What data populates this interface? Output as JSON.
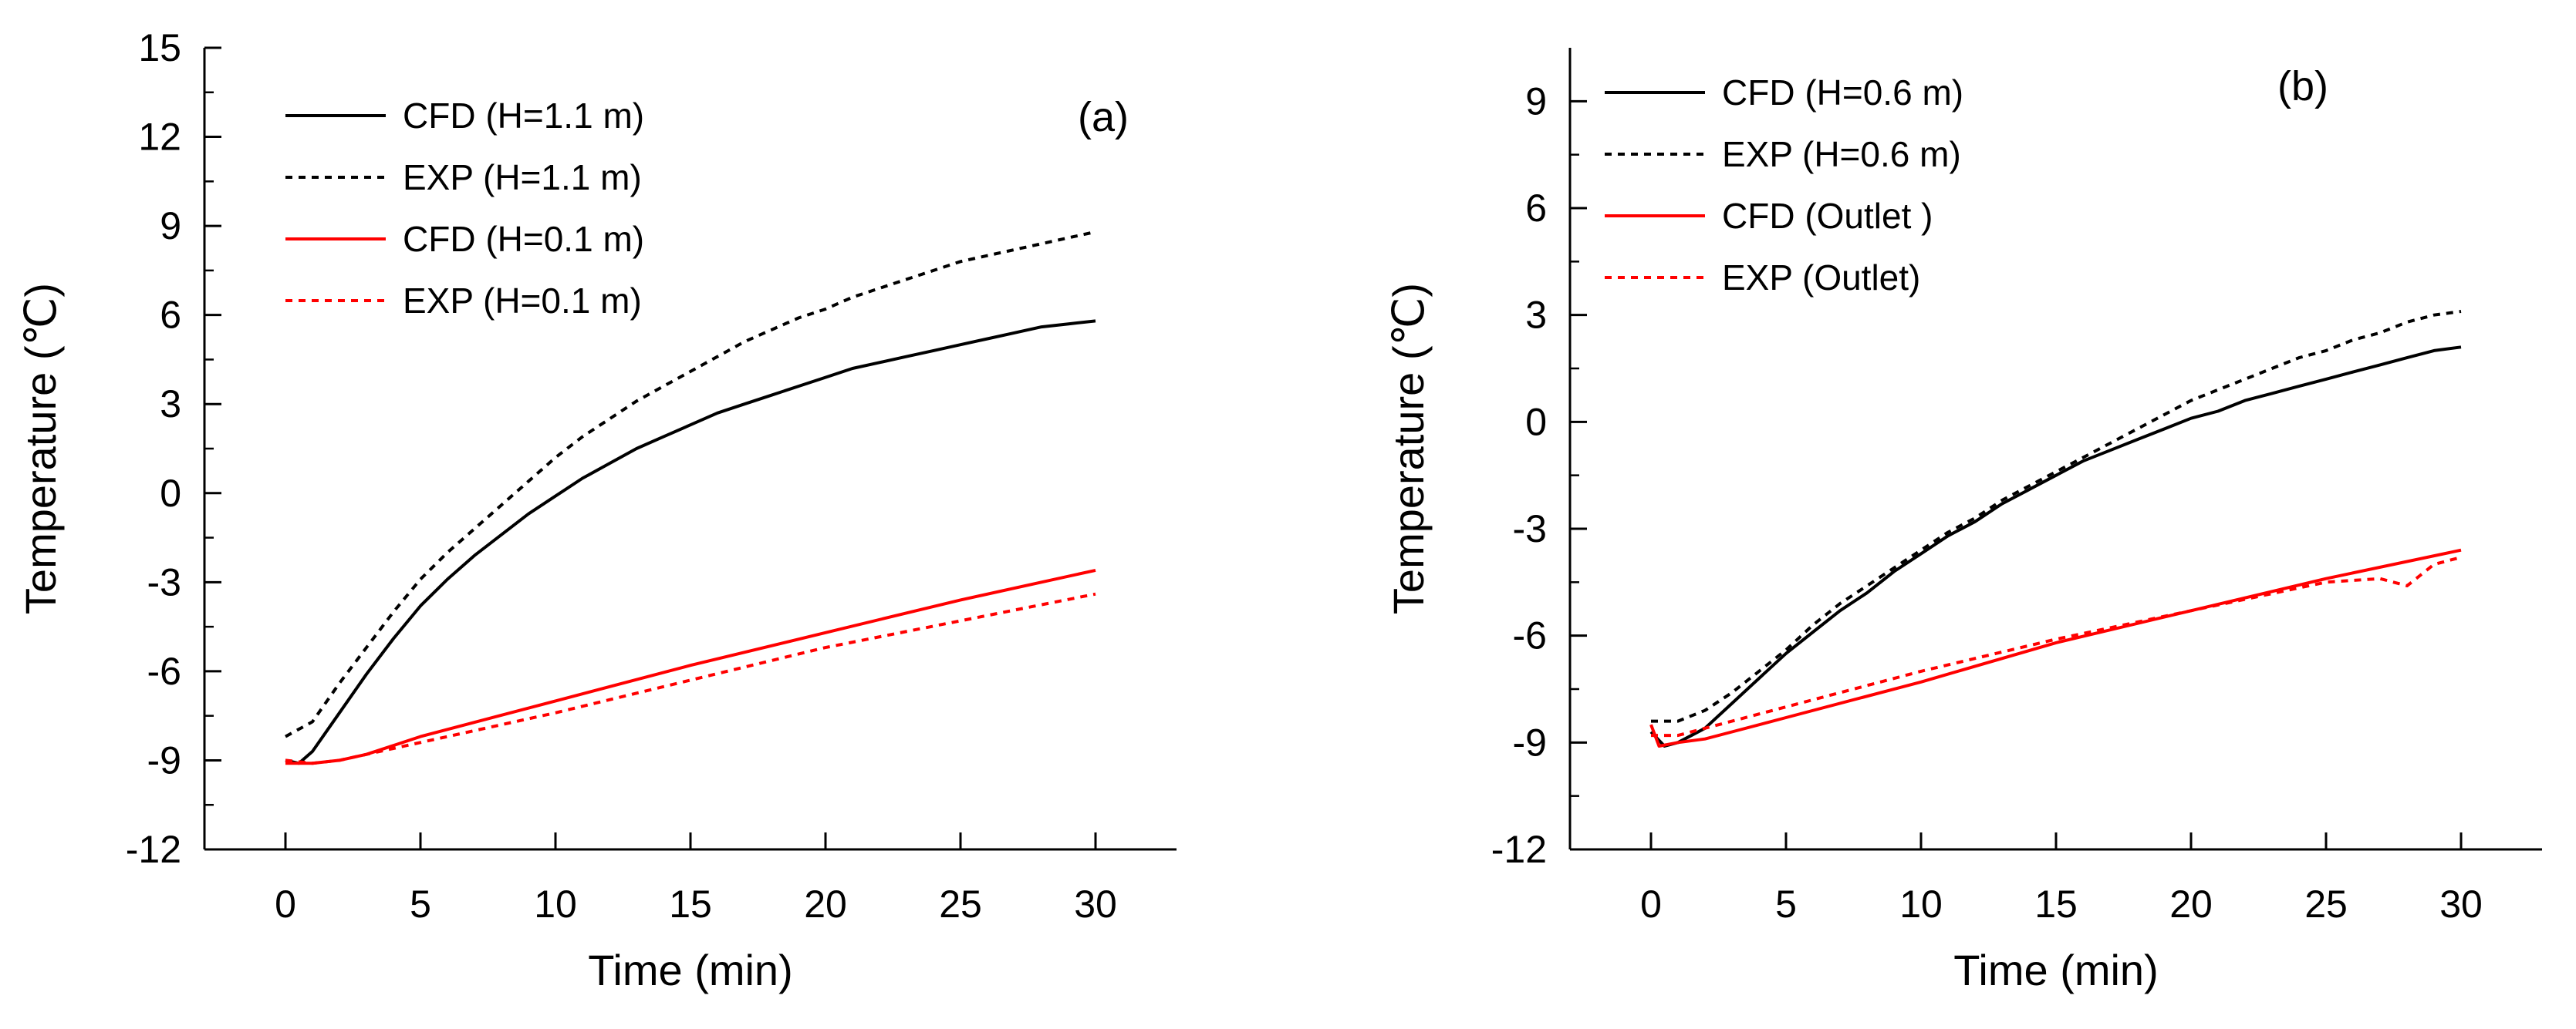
{
  "chart_data": [
    {
      "type": "line",
      "panel_label": "(a)",
      "xlabel": "Time (min)",
      "ylabel": "Temperature (℃)",
      "xlim": [
        -3,
        33
      ],
      "ylim": [
        -12,
        15
      ],
      "xticks": [
        0,
        5,
        10,
        15,
        20,
        25,
        30
      ],
      "yticks": [
        -12,
        -9,
        -6,
        -3,
        0,
        3,
        6,
        9,
        12,
        15
      ],
      "grid": false,
      "legend_position": "top-left",
      "series": [
        {
          "name": "CFD (H=1.1 m)",
          "color": "#000000",
          "dash": "solid",
          "x": [
            0,
            0.5,
            1,
            2,
            3,
            4,
            5,
            6,
            7,
            8,
            9,
            10,
            11,
            12,
            13,
            14,
            15,
            16,
            17,
            18,
            19,
            20,
            21,
            22,
            23,
            24,
            25,
            26,
            27,
            28,
            29,
            30
          ],
          "y": [
            -9.0,
            -9.1,
            -8.7,
            -7.4,
            -6.1,
            -4.9,
            -3.8,
            -2.9,
            -2.1,
            -1.4,
            -0.7,
            -0.1,
            0.5,
            1.0,
            1.5,
            1.9,
            2.3,
            2.7,
            3.0,
            3.3,
            3.6,
            3.9,
            4.2,
            4.4,
            4.6,
            4.8,
            5.0,
            5.2,
            5.4,
            5.6,
            5.7,
            5.8
          ]
        },
        {
          "name": "EXP (H=1.1 m)",
          "color": "#000000",
          "dash": "dotted",
          "x": [
            0,
            1,
            2,
            3,
            4,
            5,
            6,
            7,
            8,
            9,
            10,
            11,
            12,
            13,
            14,
            15,
            16,
            17,
            18,
            19,
            20,
            21,
            22,
            23,
            24,
            25,
            26,
            27,
            28,
            29,
            30
          ],
          "y": [
            -8.2,
            -7.7,
            -6.4,
            -5.2,
            -4.0,
            -2.9,
            -2.0,
            -1.2,
            -0.4,
            0.4,
            1.2,
            1.9,
            2.5,
            3.1,
            3.6,
            4.1,
            4.6,
            5.1,
            5.5,
            5.9,
            6.2,
            6.6,
            6.9,
            7.2,
            7.5,
            7.8,
            8.0,
            8.2,
            8.4,
            8.6,
            8.8
          ]
        },
        {
          "name": "CFD (H=0.1 m)",
          "color": "#ff0000",
          "dash": "solid",
          "x": [
            0,
            1,
            2,
            3,
            5,
            10,
            15,
            20,
            25,
            30
          ],
          "y": [
            -9.1,
            -9.1,
            -9.0,
            -8.8,
            -8.2,
            -7.0,
            -5.8,
            -4.7,
            -3.6,
            -2.6
          ]
        },
        {
          "name": "EXP (H=0.1 m)",
          "color": "#ff0000",
          "dash": "dotted",
          "x": [
            0,
            1,
            2,
            3,
            5,
            10,
            15,
            20,
            25,
            30
          ],
          "y": [
            -9.0,
            -9.1,
            -9.0,
            -8.8,
            -8.4,
            -7.4,
            -6.3,
            -5.2,
            -4.3,
            -3.4
          ]
        }
      ]
    },
    {
      "type": "line",
      "panel_label": "(b)",
      "xlabel": "Time (min)",
      "ylabel": "Temperature (℃)",
      "xlim": [
        -3,
        33
      ],
      "ylim": [
        -12,
        10.5
      ],
      "xticks": [
        0,
        5,
        10,
        15,
        20,
        25,
        30
      ],
      "yticks": [
        -12,
        -9,
        -6,
        -3,
        0,
        3,
        6,
        9
      ],
      "grid": false,
      "legend_position": "top-left",
      "series": [
        {
          "name": "CFD (H=0.6 m)",
          "color": "#000000",
          "dash": "solid",
          "x": [
            0,
            0.5,
            1,
            2,
            3,
            4,
            5,
            6,
            7,
            8,
            9,
            10,
            11,
            12,
            13,
            14,
            15,
            16,
            17,
            18,
            19,
            20,
            21,
            22,
            23,
            24,
            25,
            26,
            27,
            28,
            29,
            30
          ],
          "y": [
            -8.7,
            -9.1,
            -9.0,
            -8.6,
            -7.9,
            -7.2,
            -6.5,
            -5.9,
            -5.3,
            -4.8,
            -4.2,
            -3.7,
            -3.2,
            -2.8,
            -2.3,
            -1.9,
            -1.5,
            -1.1,
            -0.8,
            -0.5,
            -0.2,
            0.1,
            0.3,
            0.6,
            0.8,
            1.0,
            1.2,
            1.4,
            1.6,
            1.8,
            2.0,
            2.1
          ]
        },
        {
          "name": "EXP (H=0.6 m)",
          "color": "#000000",
          "dash": "dotted",
          "x": [
            0,
            1,
            2,
            3,
            4,
            5,
            6,
            7,
            8,
            9,
            10,
            11,
            12,
            13,
            14,
            15,
            16,
            17,
            18,
            19,
            20,
            21,
            22,
            23,
            24,
            25,
            26,
            27,
            28,
            29,
            30
          ],
          "y": [
            -8.4,
            -8.4,
            -8.1,
            -7.6,
            -7.0,
            -6.4,
            -5.7,
            -5.1,
            -4.6,
            -4.1,
            -3.6,
            -3.1,
            -2.7,
            -2.2,
            -1.8,
            -1.4,
            -1.0,
            -0.6,
            -0.2,
            0.2,
            0.6,
            0.9,
            1.2,
            1.5,
            1.8,
            2.0,
            2.3,
            2.5,
            2.8,
            3.0,
            3.1
          ]
        },
        {
          "name": "CFD (Outlet )",
          "color": "#ff0000",
          "dash": "solid",
          "x": [
            0,
            0.3,
            1,
            2,
            3,
            5,
            10,
            15,
            20,
            25,
            30
          ],
          "y": [
            -8.5,
            -9.1,
            -9.0,
            -8.9,
            -8.7,
            -8.3,
            -7.3,
            -6.2,
            -5.3,
            -4.4,
            -3.6
          ]
        },
        {
          "name": "EXP (Outlet)",
          "color": "#ff0000",
          "dash": "dotted",
          "x": [
            0,
            1,
            2,
            3,
            5,
            10,
            15,
            20,
            25,
            27,
            28,
            29,
            30
          ],
          "y": [
            -8.8,
            -8.8,
            -8.6,
            -8.4,
            -8.0,
            -7.0,
            -6.1,
            -5.3,
            -4.5,
            -4.4,
            -4.6,
            -4.0,
            -3.8
          ]
        }
      ]
    }
  ]
}
